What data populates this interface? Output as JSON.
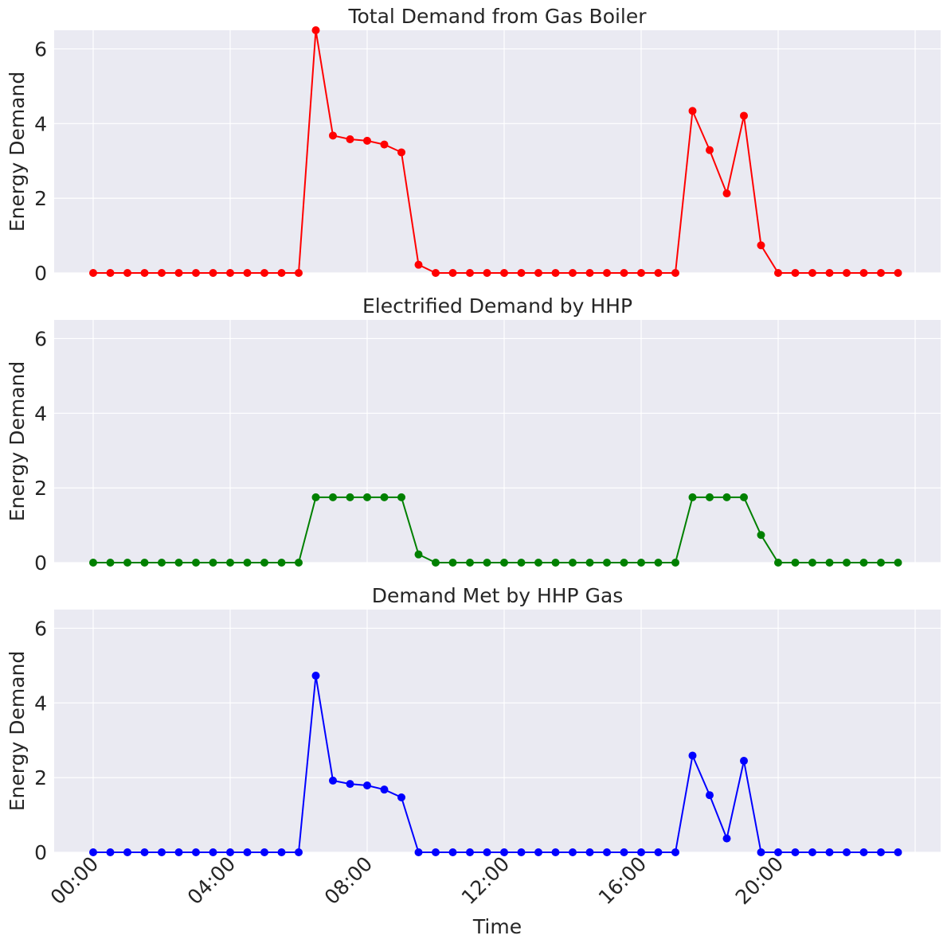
{
  "chart_data": {
    "type": "line",
    "x": [
      "00:00",
      "00:30",
      "01:00",
      "01:30",
      "02:00",
      "02:30",
      "03:00",
      "03:30",
      "04:00",
      "04:30",
      "05:00",
      "05:30",
      "06:00",
      "06:30",
      "07:00",
      "07:30",
      "08:00",
      "08:30",
      "09:00",
      "09:30",
      "10:00",
      "10:30",
      "11:00",
      "11:30",
      "12:00",
      "12:30",
      "13:00",
      "13:30",
      "14:00",
      "14:30",
      "15:00",
      "15:30",
      "16:00",
      "16:30",
      "17:00",
      "17:30",
      "18:00",
      "18:30",
      "19:00",
      "19:30",
      "20:00",
      "20:30",
      "21:00",
      "21:30",
      "22:00",
      "22:30",
      "23:00",
      "23:30"
    ],
    "xticks": [
      "00:00",
      "04:00",
      "08:00",
      "12:00",
      "16:00",
      "20:00"
    ],
    "xlabel": "Time",
    "ylabel": "Energy Demand",
    "ylim": [
      0,
      6.5
    ],
    "yticks": [
      "0",
      "2",
      "4",
      "6"
    ],
    "grid": true,
    "panels": [
      {
        "title": "Total Demand from Gas Boiler",
        "color": "#ff0000",
        "values": [
          0,
          0,
          0,
          0,
          0,
          0,
          0,
          0,
          0,
          0,
          0,
          0,
          0,
          6.5,
          3.68,
          3.58,
          3.54,
          3.44,
          3.23,
          0.22,
          0,
          0,
          0,
          0,
          0,
          0,
          0,
          0,
          0,
          0,
          0,
          0,
          0,
          0,
          0,
          4.34,
          3.29,
          2.13,
          4.21,
          0.74,
          0,
          0,
          0,
          0,
          0,
          0,
          0,
          0
        ]
      },
      {
        "title": "Electrified Demand by HHP",
        "color": "#008000",
        "values": [
          0,
          0,
          0,
          0,
          0,
          0,
          0,
          0,
          0,
          0,
          0,
          0,
          0,
          1.75,
          1.75,
          1.75,
          1.75,
          1.75,
          1.75,
          0.22,
          0,
          0,
          0,
          0,
          0,
          0,
          0,
          0,
          0,
          0,
          0,
          0,
          0,
          0,
          0,
          1.75,
          1.75,
          1.75,
          1.75,
          0.74,
          0,
          0,
          0,
          0,
          0,
          0,
          0,
          0
        ]
      },
      {
        "title": "Demand Met by HHP Gas",
        "color": "#0000ff",
        "values": [
          0,
          0,
          0,
          0,
          0,
          0,
          0,
          0,
          0,
          0,
          0,
          0,
          0,
          4.73,
          1.92,
          1.83,
          1.79,
          1.68,
          1.47,
          0,
          0,
          0,
          0,
          0,
          0,
          0,
          0,
          0,
          0,
          0,
          0,
          0,
          0,
          0,
          0,
          2.59,
          1.53,
          0.37,
          2.45,
          0,
          0,
          0,
          0,
          0,
          0,
          0,
          0,
          0
        ]
      }
    ]
  }
}
